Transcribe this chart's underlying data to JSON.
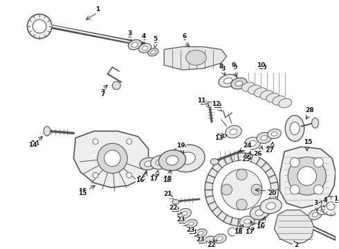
{
  "bg_color": "#ffffff",
  "fig_width": 4.9,
  "fig_height": 3.6,
  "dpi": 100,
  "gray": "#555555",
  "lgray": "#aaaaaa",
  "dgray": "#333333"
}
